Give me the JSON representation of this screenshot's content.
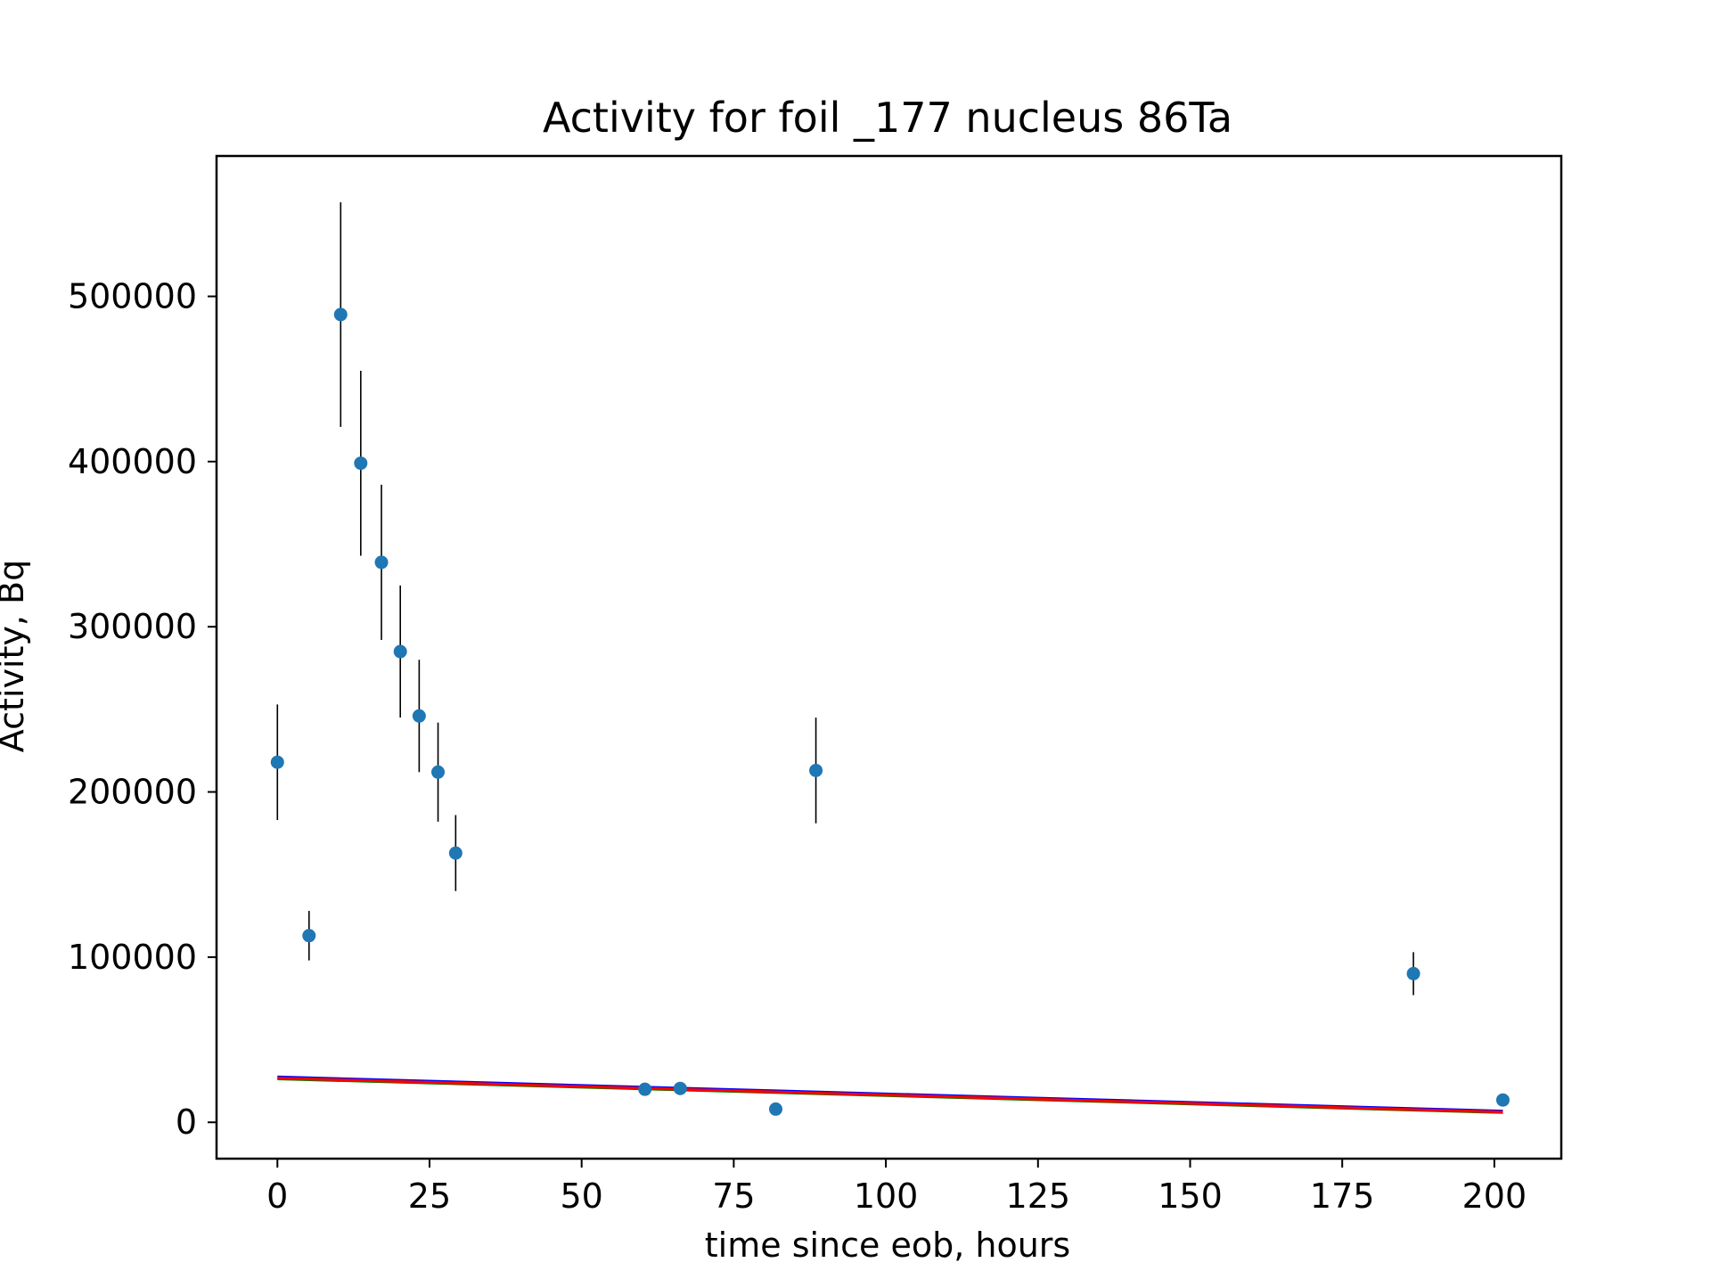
{
  "chart_data": {
    "type": "scatter",
    "title": "Activity for foil _177 nucleus 86Ta",
    "xlabel": "time since eob, hours",
    "ylabel": "Activity, Bq",
    "xlim": [
      -10,
      211
    ],
    "ylim": [
      -22000,
      585000
    ],
    "xticks": [
      0,
      25,
      50,
      75,
      100,
      125,
      150,
      175,
      200
    ],
    "yticks": [
      0,
      100000,
      200000,
      300000,
      400000,
      500000
    ],
    "grid": false,
    "points": {
      "color": "#1f77b4",
      "errorbar_color": "#000000",
      "x": [
        0.0,
        5.2,
        10.4,
        13.7,
        17.1,
        20.2,
        23.3,
        26.4,
        29.3,
        60.4,
        66.2,
        81.9,
        88.5,
        186.7,
        201.4
      ],
      "y": [
        218000,
        113000,
        489000,
        399000,
        339000,
        285000,
        246000,
        212000,
        163000,
        20000,
        20500,
        8000,
        213000,
        90000,
        13500
      ],
      "yerr": [
        35000,
        15000,
        68000,
        56000,
        47000,
        40000,
        34000,
        30000,
        23000,
        1500,
        1500,
        900,
        32000,
        13000,
        1200
      ]
    },
    "series": [
      {
        "type": "line",
        "color": "#0000ff",
        "x": [
          0,
          201.4
        ],
        "y": [
          27500,
          6800
        ]
      },
      {
        "type": "line",
        "color": "#008000",
        "x": [
          0,
          201.4
        ],
        "y": [
          26300,
          5900
        ]
      },
      {
        "type": "line",
        "color": "#ff0000",
        "x": [
          0,
          201.4
        ],
        "y": [
          26800,
          6200
        ]
      }
    ]
  }
}
